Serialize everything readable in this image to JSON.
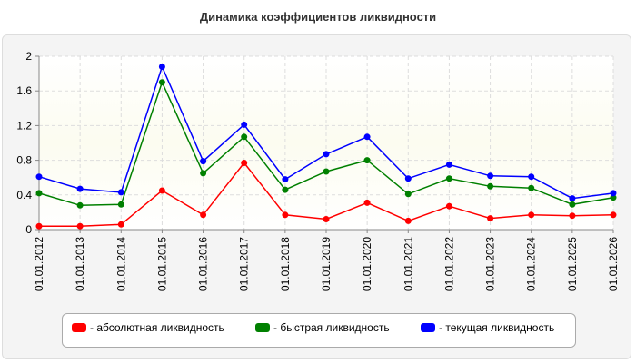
{
  "title": "Динамика коэффициентов ликвидности",
  "chart_data": {
    "type": "line",
    "title": "Динамика коэффициентов ликвидности",
    "xlabel": "",
    "ylabel": "",
    "ylim": [
      0,
      2
    ],
    "yticks": [
      "0",
      "0.4",
      "0.8",
      "1.2",
      "1.6",
      "2"
    ],
    "grid": true,
    "legend_position": "bottom",
    "categories": [
      "01.01.2012",
      "01.01.2013",
      "01.01.2014",
      "01.01.2015",
      "01.01.2016",
      "01.01.2017",
      "01.01.2018",
      "01.01.2019",
      "01.01.2020",
      "01.01.2021",
      "01.01.2022",
      "01.01.2023",
      "01.01.2024",
      "01.01.2025",
      "01.01.2026"
    ],
    "series": [
      {
        "name": "- абсолютная ликвидность",
        "color": "#ff0000",
        "values": [
          0.04,
          0.04,
          0.06,
          0.45,
          0.17,
          0.77,
          0.17,
          0.12,
          0.31,
          0.1,
          0.27,
          0.13,
          0.17,
          0.16,
          0.17
        ]
      },
      {
        "name": "- быстрая ликвидность",
        "color": "#008000",
        "values": [
          0.42,
          0.28,
          0.29,
          1.7,
          0.65,
          1.07,
          0.46,
          0.67,
          0.8,
          0.41,
          0.59,
          0.5,
          0.48,
          0.29,
          0.37
        ]
      },
      {
        "name": "- текущая ликвидность",
        "color": "#0000ff",
        "values": [
          0.61,
          0.47,
          0.43,
          1.88,
          0.79,
          1.21,
          0.58,
          0.87,
          1.07,
          0.59,
          0.75,
          0.62,
          0.61,
          0.36,
          0.42
        ]
      }
    ]
  },
  "legend": [
    {
      "label": "- абсолютная ликвидность",
      "color": "#ff0000"
    },
    {
      "label": "- быстрая ликвидность",
      "color": "#008000"
    },
    {
      "label": "- текущая ликвидность",
      "color": "#0000ff"
    }
  ]
}
